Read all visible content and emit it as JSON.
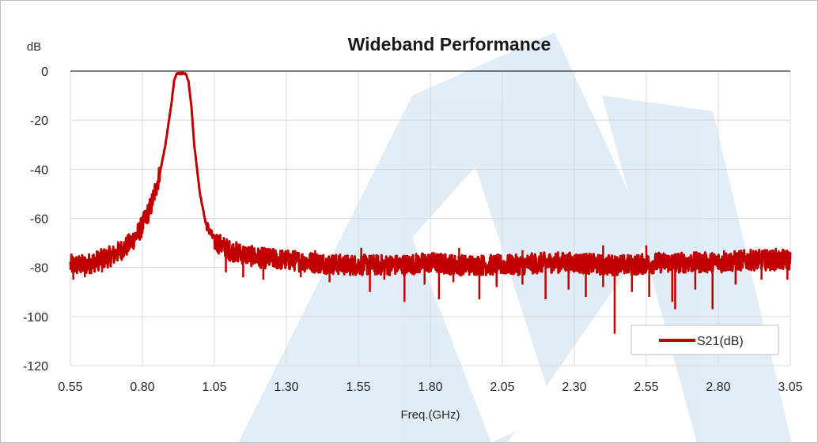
{
  "chart_data": {
    "type": "line",
    "title": "Wideband Performance",
    "xlabel": "Freq.(GHz)",
    "ylabel": "dB",
    "xlim": [
      0.55,
      3.05
    ],
    "ylim": [
      -120,
      0
    ],
    "xticks": [
      "0.55",
      "0.80",
      "1.05",
      "1.30",
      "1.55",
      "1.80",
      "2.05",
      "2.30",
      "2.55",
      "2.80",
      "3.05"
    ],
    "yticks": [
      "0",
      "-20",
      "-40",
      "-60",
      "-80",
      "-100",
      "-120"
    ],
    "grid": true,
    "legend": "bottom-right",
    "series": [
      {
        "name": "S21(dB)",
        "color": "#c00000",
        "x": [
          0.55,
          0.6,
          0.65,
          0.7,
          0.75,
          0.78,
          0.8,
          0.83,
          0.86,
          0.88,
          0.9,
          0.91,
          0.92,
          0.93,
          0.94,
          0.95,
          0.96,
          0.97,
          0.98,
          1.0,
          1.02,
          1.05,
          1.1,
          1.2,
          1.3,
          1.4,
          1.5,
          1.6,
          1.7,
          1.8,
          1.9,
          2.0,
          2.1,
          2.2,
          2.3,
          2.4,
          2.5,
          2.6,
          2.7,
          2.8,
          2.9,
          3.05
        ],
        "y": [
          -79,
          -79,
          -77,
          -75,
          -71,
          -67,
          -63,
          -55,
          -42,
          -30,
          -14,
          -4,
          -1,
          -1,
          -1,
          -1,
          -4,
          -14,
          -30,
          -50,
          -62,
          -69,
          -73,
          -76,
          -77,
          -78,
          -79,
          -79,
          -79,
          -78,
          -79,
          -79,
          -79,
          -78,
          -78,
          -79,
          -79,
          -78,
          -78,
          -78,
          -77,
          -77
        ]
      }
    ],
    "spikes": [
      {
        "x": 0.56,
        "y": -85
      },
      {
        "x": 0.6,
        "y": -84
      },
      {
        "x": 0.66,
        "y": -82
      },
      {
        "x": 1.09,
        "y": -82
      },
      {
        "x": 1.15,
        "y": -84
      },
      {
        "x": 1.22,
        "y": -85
      },
      {
        "x": 1.35,
        "y": -84
      },
      {
        "x": 1.45,
        "y": -86
      },
      {
        "x": 1.59,
        "y": -90
      },
      {
        "x": 1.64,
        "y": -85
      },
      {
        "x": 1.71,
        "y": -94
      },
      {
        "x": 1.78,
        "y": -87
      },
      {
        "x": 1.83,
        "y": -93
      },
      {
        "x": 1.88,
        "y": -86
      },
      {
        "x": 1.97,
        "y": -93
      },
      {
        "x": 2.03,
        "y": -88
      },
      {
        "x": 2.12,
        "y": -87
      },
      {
        "x": 2.2,
        "y": -93
      },
      {
        "x": 2.28,
        "y": -89
      },
      {
        "x": 2.34,
        "y": -92
      },
      {
        "x": 2.4,
        "y": -88
      },
      {
        "x": 2.44,
        "y": -107
      },
      {
        "x": 2.5,
        "y": -90
      },
      {
        "x": 2.56,
        "y": -92
      },
      {
        "x": 2.64,
        "y": -94
      },
      {
        "x": 2.65,
        "y": -97
      },
      {
        "x": 2.72,
        "y": -89
      },
      {
        "x": 2.78,
        "y": -97
      },
      {
        "x": 2.86,
        "y": -87
      },
      {
        "x": 2.95,
        "y": -85
      },
      {
        "x": 3.04,
        "y": -85
      }
    ],
    "peaks": [
      {
        "x": 1.12,
        "y": -72
      },
      {
        "x": 1.4,
        "y": -73
      },
      {
        "x": 1.56,
        "y": -72
      },
      {
        "x": 1.9,
        "y": -72
      },
      {
        "x": 2.12,
        "y": -73
      },
      {
        "x": 2.4,
        "y": -71
      },
      {
        "x": 2.55,
        "y": -71
      },
      {
        "x": 2.82,
        "y": -73
      },
      {
        "x": 3.0,
        "y": -72
      }
    ]
  }
}
